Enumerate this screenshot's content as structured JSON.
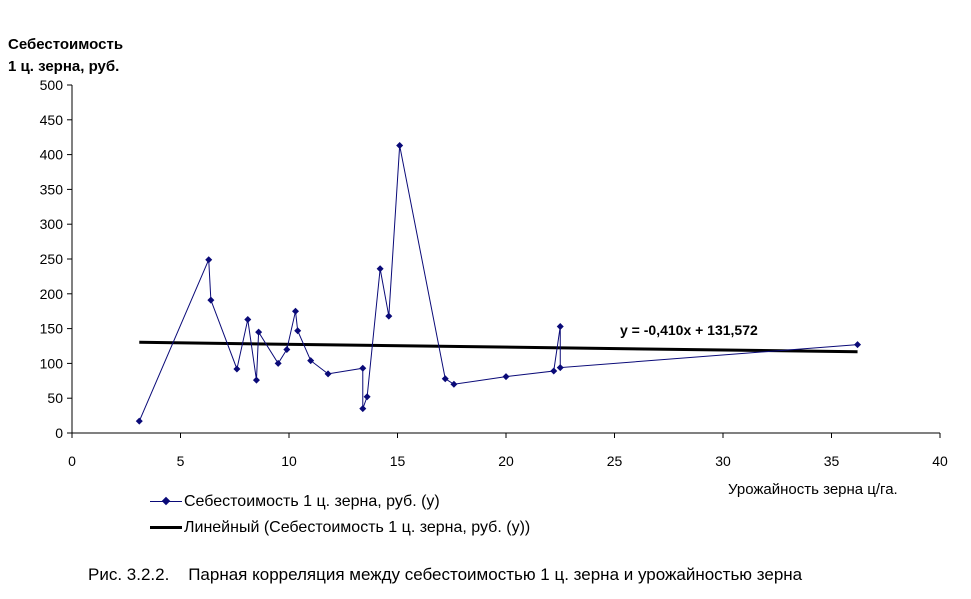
{
  "chart_data": {
    "type": "scatter",
    "ylabel_lines": [
      "Себестоимость",
      "1 ц. зерна, руб."
    ],
    "xlabel": "Урожайность зерна ц/га.",
    "xlim": [
      0,
      40
    ],
    "ylim": [
      0,
      500
    ],
    "x_ticks": [
      "0",
      "5",
      "10",
      "15",
      "20",
      "25",
      "30",
      "35",
      "40"
    ],
    "y_ticks": [
      "0",
      "50",
      "100",
      "150",
      "200",
      "250",
      "300",
      "350",
      "400",
      "450",
      "500"
    ],
    "grid": false,
    "legend_position": "bottom-left",
    "series": [
      {
        "name": "Себестоимость 1 ц. зерна, руб. (у)",
        "color": "#0a0a78",
        "marker": "diamond",
        "x": [
          3.1,
          6.3,
          6.4,
          7.6,
          8.1,
          8.5,
          8.6,
          9.5,
          9.9,
          10.3,
          10.4,
          11.0,
          11.8,
          13.4,
          13.4,
          13.6,
          14.2,
          14.6,
          15.1,
          17.2,
          17.6,
          20.0,
          22.2,
          22.5,
          22.5,
          36.2
        ],
        "y": [
          17,
          249,
          191,
          92,
          163,
          76,
          145,
          100,
          120,
          175,
          147,
          104,
          85,
          93,
          35,
          52,
          236,
          168,
          413,
          78,
          70,
          81,
          89,
          153,
          94,
          127
        ]
      },
      {
        "name": "Линейный (Себестоимость 1 ц. зерна, руб. (у))",
        "color": "#000000",
        "type": "trendline",
        "slope": -0.41,
        "intercept": 131.572,
        "x_range": [
          3.1,
          36.2
        ]
      }
    ],
    "annotations": [
      "y = -0,410x + 131,572"
    ]
  },
  "caption": "Рис. 3.2.2.    Парная корреляция между себестоимостью 1 ц. зерна и урожайностью зерна"
}
